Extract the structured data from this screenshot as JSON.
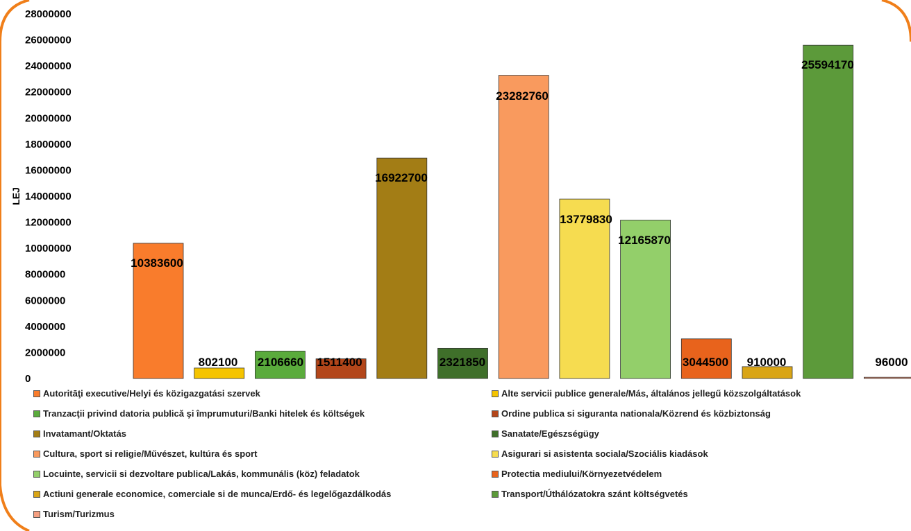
{
  "chart_data": {
    "type": "bar",
    "ylabel": "LEJ",
    "ylim": [
      0,
      28000000
    ],
    "yticks": [
      "0",
      "2000000",
      "4000000",
      "6000000",
      "8000000",
      "10000000",
      "12000000",
      "14000000",
      "16000000",
      "18000000",
      "20000000",
      "22000000",
      "24000000",
      "26000000",
      "28000000"
    ],
    "legend_position": "bottom",
    "grid": false,
    "series": [
      {
        "name": "Autoritāţi executive/Helyi és közigazgatási szervek",
        "value": 10383600,
        "label": "10383600",
        "color": "#f97c2c"
      },
      {
        "name": "Alte servicii publice generale/Más, általános jellegű közszolgáltatások",
        "value": 802100,
        "label": "802100",
        "color": "#f5c400"
      },
      {
        "name": "Tranzacţii privind datoria publicǎ şi împrumuturi/Banki hitelek és költségek",
        "value": 2106660,
        "label": "2106660",
        "color": "#5aab3c"
      },
      {
        "name": "Ordine publica si siguranta nationala/Közrend és közbiztonság",
        "value": 1511400,
        "label": "1511400",
        "color": "#b3461a"
      },
      {
        "name": "Invatamant/Oktatás",
        "value": 16922700,
        "label": "16922700",
        "color": "#a37d15"
      },
      {
        "name": "Sanatate/Egészségügy",
        "value": 2321850,
        "label": "2321850",
        "color": "#3f6f2a"
      },
      {
        "name": "Cultura, sport si religie/Művészet, kultúra és sport",
        "value": 23282760,
        "label": "23282760",
        "color": "#f99a5e"
      },
      {
        "name": "Asigurari si asistenta sociala/Szociális kiadások",
        "value": 13779830,
        "label": "13779830",
        "color": "#f6dc50"
      },
      {
        "name": "Locuinte, servicii si dezvoltare publica/Lakás, kommunális (köz) feladatok",
        "value": 12165870,
        "label": "12165870",
        "color": "#93cf6a"
      },
      {
        "name": "Protectia mediului/Környezetvédelem",
        "value": 3044500,
        "label": "3044500",
        "color": "#e8631c"
      },
      {
        "name": "Actiuni generale economice, comerciale si de munca/Erdő- és legelőgazdálkodás",
        "value": 910000,
        "label": "910000",
        "color": "#d9a516"
      },
      {
        "name": "Transport/Úthálózatokra szánt költségvetés",
        "value": 25594170,
        "label": "25594170",
        "color": "#5c9a3a"
      },
      {
        "name": "Turism/Turizmus",
        "value": 96000,
        "label": "96000",
        "color": "#f59f80"
      }
    ]
  },
  "colors": {
    "frame_border": "#f07f1a"
  }
}
